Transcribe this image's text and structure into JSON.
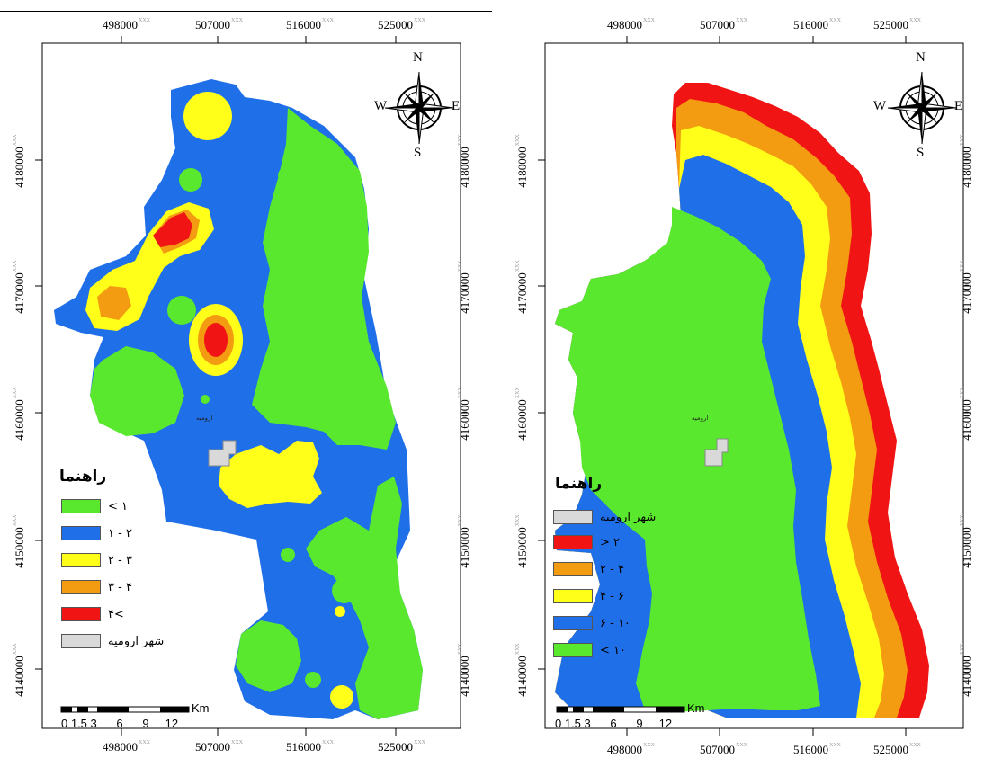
{
  "colors": {
    "green": "#59e82d",
    "blue": "#1f6fe9",
    "yellow": "#ffff1a",
    "orange": "#f39c12",
    "red": "#f01414",
    "city": "#d9d9d9"
  },
  "left_map": {
    "x_ticks_top": [
      "498000",
      "507000",
      "516000",
      "525000"
    ],
    "x_ticks_bottom": [
      "498000",
      "507000",
      "516000",
      "525000"
    ],
    "y_ticks_left": [
      "4180000",
      "4170000",
      "4160000",
      "4150000",
      "4140000"
    ],
    "y_ticks_right": [
      "4180000",
      "4170000",
      "4160000",
      "4150000",
      "4140000"
    ],
    "tick_suffix": "XXX",
    "compass": {
      "n": "N",
      "s": "S",
      "e": "E",
      "w": "W"
    },
    "city_label": "ارومیه",
    "legend": {
      "title": "راهنما",
      "items": [
        {
          "label": "< ۱",
          "color": "#59e82d"
        },
        {
          "label": "۱ - ۲",
          "color": "#1f6fe9"
        },
        {
          "label": "۲ - ۳",
          "color": "#ffff1a"
        },
        {
          "label": "۳ - ۴",
          "color": "#f39c12"
        },
        {
          "label": "۴<",
          "color": "#f01414"
        },
        {
          "label": "شهر ارومیه",
          "color": "#d9d9d9"
        }
      ]
    },
    "scale": {
      "numbers": "0 1.5 3      6      9     12",
      "unit": "Km"
    }
  },
  "right_map": {
    "x_ticks_top": [
      "498000",
      "507000",
      "516000",
      "525000"
    ],
    "x_ticks_bottom": [
      "498000",
      "507000",
      "516000",
      "525000"
    ],
    "y_ticks_left": [
      "4180000",
      "4170000",
      "4160000",
      "4150000",
      "4140000"
    ],
    "y_ticks_right": [
      "4180000",
      "4170000",
      "4160000",
      "4150000",
      "4140000"
    ],
    "tick_suffix": "XXX",
    "compass": {
      "n": "N",
      "s": "S",
      "e": "E",
      "w": "W"
    },
    "city_label": "ارومیه",
    "legend": {
      "title": "راهنما",
      "items": [
        {
          "label": "شهر ارومیه",
          "color": "#d9d9d9"
        },
        {
          "label": "> ۲",
          "color": "#f01414"
        },
        {
          "label": "۲ - ۴",
          "color": "#f39c12"
        },
        {
          "label": "۴ - ۶",
          "color": "#ffff1a"
        },
        {
          "label": "۶ - ۱۰",
          "color": "#1f6fe9"
        },
        {
          "label": "< ۱۰",
          "color": "#59e82d"
        }
      ]
    },
    "scale": {
      "numbers": "0 1.5 3      6      9     12",
      "unit": "Km"
    }
  }
}
